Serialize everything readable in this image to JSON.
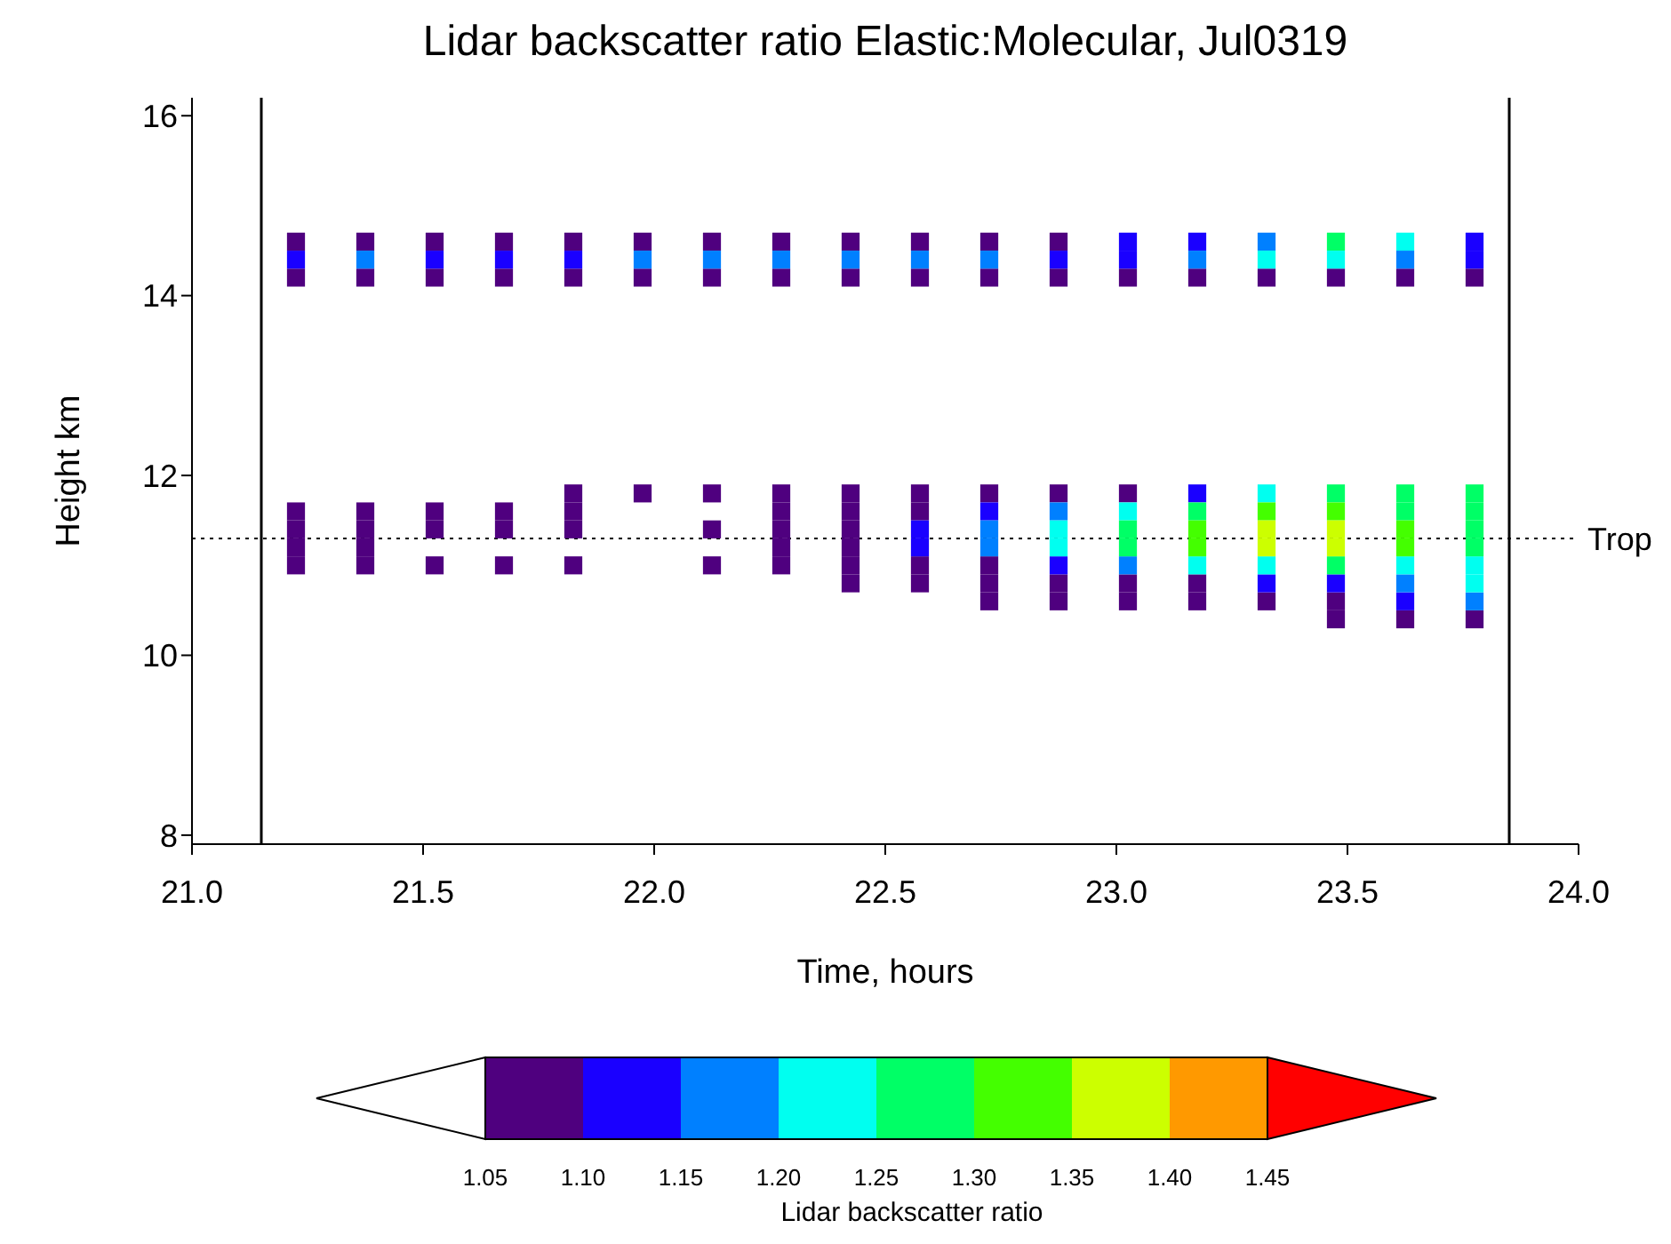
{
  "chart_data": {
    "type": "scatter",
    "marker": "square",
    "title": "Lidar backscatter ratio Elastic:Molecular, Jul0319",
    "xlabel": "Time, hours",
    "ylabel": "Height km",
    "clabel": "Lidar backscatter ratio",
    "series": [
      {
        "color": "#4f007f",
        "x": [
          21.225,
          21.375,
          21.525,
          21.675,
          21.825,
          21.975,
          22.125,
          22.275,
          22.425,
          22.575,
          22.725,
          22.875,
          21.225,
          21.375,
          21.525,
          21.675,
          21.825,
          21.975,
          22.125,
          22.275,
          22.425,
          22.575,
          22.725,
          22.875,
          23.025,
          23.175,
          23.325,
          23.475,
          23.625,
          23.775,
          21.825,
          21.975,
          22.125,
          22.275,
          22.425,
          22.575,
          22.725,
          22.875,
          23.025,
          21.225,
          21.375,
          21.525,
          21.675,
          21.825,
          22.275,
          22.425,
          22.575,
          21.225,
          21.375,
          21.525,
          21.675,
          21.825,
          22.125,
          22.275,
          22.425,
          21.225,
          21.375,
          22.275,
          22.425,
          21.225,
          21.375,
          21.525,
          21.675,
          21.825,
          22.125,
          22.275,
          22.425,
          22.575,
          22.725,
          22.425,
          22.575,
          22.725,
          22.875,
          23.025,
          23.175,
          22.725,
          22.875,
          23.025,
          23.175,
          23.325,
          23.475,
          23.475,
          23.625,
          23.775
        ],
        "values": [
          14.6,
          14.6,
          14.6,
          14.6,
          14.6,
          14.6,
          14.6,
          14.6,
          14.6,
          14.6,
          14.6,
          14.6,
          14.2,
          14.2,
          14.2,
          14.2,
          14.2,
          14.2,
          14.2,
          14.2,
          14.2,
          14.2,
          14.2,
          14.2,
          14.2,
          14.2,
          14.2,
          14.2,
          14.2,
          14.2,
          11.8,
          11.8,
          11.8,
          11.8,
          11.8,
          11.8,
          11.8,
          11.8,
          11.8,
          11.6,
          11.6,
          11.6,
          11.6,
          11.6,
          11.6,
          11.6,
          11.6,
          11.4,
          11.4,
          11.4,
          11.4,
          11.4,
          11.4,
          11.4,
          11.4,
          11.2,
          11.2,
          11.2,
          11.2,
          11.0,
          11.0,
          11.0,
          11.0,
          11.0,
          11.0,
          11.0,
          11.0,
          11.0,
          11.0,
          10.8,
          10.8,
          10.8,
          10.8,
          10.8,
          10.8,
          10.6,
          10.6,
          10.6,
          10.6,
          10.6,
          10.6,
          10.4,
          10.4,
          10.4
        ]
      },
      {
        "color": "#1a00ff",
        "x": [
          23.025,
          23.175,
          23.775,
          21.225,
          21.525,
          21.675,
          21.825,
          22.875,
          23.025,
          23.775,
          23.175,
          22.725,
          22.575,
          22.575,
          22.875,
          23.325,
          23.475,
          23.625
        ],
        "values": [
          14.6,
          14.6,
          14.6,
          14.4,
          14.4,
          14.4,
          14.4,
          14.4,
          14.4,
          14.4,
          11.8,
          11.6,
          11.4,
          11.2,
          11.0,
          10.8,
          10.8,
          10.6
        ]
      },
      {
        "color": "#0080ff",
        "x": [
          23.325,
          21.375,
          21.975,
          22.125,
          22.275,
          22.425,
          22.575,
          22.725,
          23.175,
          23.625,
          22.875,
          22.725,
          22.725,
          23.025,
          23.625,
          23.775
        ],
        "values": [
          14.6,
          14.4,
          14.4,
          14.4,
          14.4,
          14.4,
          14.4,
          14.4,
          14.4,
          14.4,
          11.6,
          11.4,
          11.2,
          11.0,
          10.8,
          10.6
        ]
      },
      {
        "color": "#00fff0",
        "x": [
          23.625,
          23.325,
          23.475,
          23.325,
          23.025,
          22.875,
          22.875,
          23.175,
          23.325,
          23.625,
          23.775,
          23.775
        ],
        "values": [
          14.6,
          14.4,
          14.4,
          11.8,
          11.6,
          11.4,
          11.2,
          11.0,
          11.0,
          11.0,
          11.0,
          10.8
        ]
      },
      {
        "color": "#00ff66",
        "x": [
          23.475,
          23.475,
          23.625,
          23.775,
          23.175,
          23.625,
          23.775,
          23.025,
          23.775,
          23.025,
          23.775,
          23.475
        ],
        "values": [
          14.6,
          11.8,
          11.8,
          11.8,
          11.6,
          11.6,
          11.6,
          11.4,
          11.4,
          11.2,
          11.2,
          11.0
        ]
      },
      {
        "color": "#44ff00",
        "x": [
          23.325,
          23.475,
          23.175,
          23.625,
          23.175,
          23.625
        ],
        "values": [
          11.6,
          11.6,
          11.4,
          11.4,
          11.2,
          11.2
        ]
      },
      {
        "color": "#ccff00",
        "x": [
          23.325,
          23.475,
          23.325,
          23.475
        ],
        "values": [
          11.4,
          11.4,
          11.2,
          11.2
        ]
      }
    ],
    "clim": [
      1.05,
      1.45
    ],
    "cticks": [
      1.05,
      {
        "value": 1.1,
        "label": "1.10"
      },
      1.15,
      {
        "value": 1.2,
        "label": "1.20"
      },
      1.25,
      {
        "value": 1.3,
        "label": "1.30"
      },
      1.35,
      {
        "value": 1.4,
        "label": "1.40"
      },
      1.45
    ],
    "colors": [
      "#4f007f",
      "#1a00ff",
      "#0080ff",
      "#00fff0",
      "#00ff66",
      "#44ff00",
      "#ccff00",
      "#ff9900",
      "#ff0000"
    ],
    "xlim": [
      21,
      24
    ],
    "xticks": [
      {
        "value": 21,
        "label": "21.0"
      },
      {
        "value": 21.5,
        "label": "21.5"
      },
      {
        "value": 22,
        "label": "22.0"
      },
      {
        "value": 22.5,
        "label": "22.5"
      },
      {
        "value": 23,
        "label": "23.0"
      },
      {
        "value": 23.5,
        "label": "23.5"
      },
      {
        "value": 24,
        "label": "24.0"
      }
    ],
    "ylim": [
      7.9,
      16.2
    ],
    "yticks": [
      8,
      10,
      12,
      14,
      16
    ],
    "ref_lines": [
      {
        "axis": "x",
        "value": 21.15,
        "label": null,
        "color": "#000000",
        "line_style": "solid"
      },
      {
        "axis": "x",
        "value": 23.85,
        "label": null,
        "color": "#000000",
        "line_style": "solid"
      },
      {
        "axis": "y",
        "value": 11.3,
        "label": "Trop",
        "color": "#000000",
        "line_style": "dotted"
      }
    ]
  }
}
